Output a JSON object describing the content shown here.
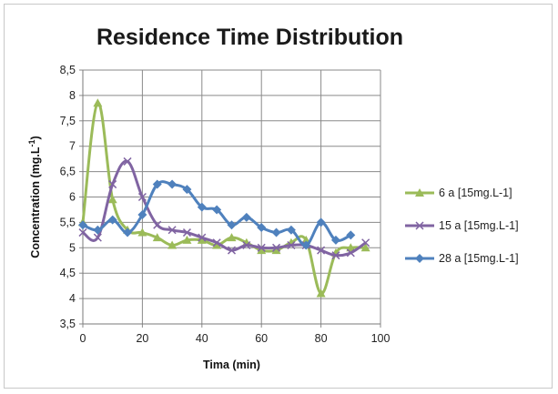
{
  "chart_data": {
    "type": "line",
    "title": "Residence Time Distribution",
    "xlabel": "Tima (min)",
    "ylabel_main": "Concentration  (mg.L",
    "ylabel_sup": "-1",
    "ylabel_close": ")",
    "xlim": [
      0,
      100
    ],
    "ylim": [
      3.5,
      8.5
    ],
    "x_ticks": [
      "0",
      "20",
      "40",
      "60",
      "80",
      "100"
    ],
    "y_ticks": [
      "3,5",
      "4",
      "4,5",
      "5",
      "5,5",
      "6",
      "6,5",
      "7",
      "7,5",
      "8",
      "8,5"
    ],
    "grid": true,
    "legend_position": "right",
    "series": [
      {
        "name": "6 a [15mg.L-1]",
        "color": "#9BBB59",
        "marker": "triangle",
        "x": [
          0,
          5,
          10,
          15,
          20,
          25,
          30,
          35,
          40,
          45,
          50,
          55,
          60,
          65,
          70,
          75,
          80,
          85,
          90,
          95
        ],
        "y": [
          5.5,
          7.85,
          5.95,
          5.35,
          5.3,
          5.2,
          5.05,
          5.15,
          5.15,
          5.05,
          5.2,
          5.1,
          4.95,
          4.95,
          5.1,
          5.15,
          4.1,
          4.9,
          5.0,
          5.0
        ]
      },
      {
        "name": "15 a [15mg.L-1]",
        "color": "#8064A2",
        "marker": "x",
        "x": [
          0,
          5,
          10,
          15,
          20,
          25,
          30,
          35,
          40,
          45,
          50,
          55,
          60,
          65,
          70,
          75,
          80,
          85,
          90,
          95
        ],
        "y": [
          5.3,
          5.2,
          6.25,
          6.7,
          6.0,
          5.45,
          5.35,
          5.3,
          5.2,
          5.1,
          4.95,
          5.05,
          5.0,
          5.0,
          5.05,
          5.05,
          4.95,
          4.85,
          4.9,
          5.1
        ]
      },
      {
        "name": "28 a [15mg.L-1]",
        "color": "#4F81BD",
        "marker": "diamond",
        "x": [
          0,
          5,
          10,
          15,
          20,
          25,
          30,
          35,
          40,
          45,
          50,
          55,
          60,
          65,
          70,
          75,
          80,
          85,
          90
        ],
        "y": [
          5.45,
          5.35,
          5.55,
          5.3,
          5.65,
          6.25,
          6.25,
          6.15,
          5.8,
          5.75,
          5.45,
          5.6,
          5.4,
          5.3,
          5.35,
          5.05,
          5.5,
          5.15,
          5.25
        ]
      }
    ]
  }
}
